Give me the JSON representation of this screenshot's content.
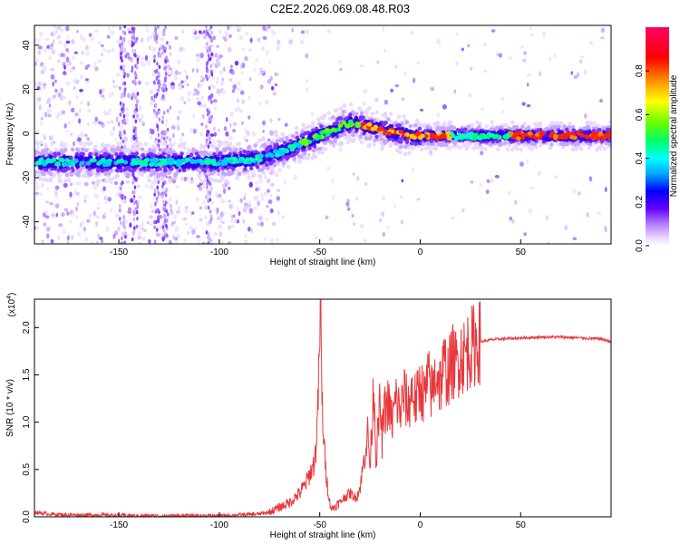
{
  "title": "C2E2.2026.069.08.48.R03",
  "chart_data": [
    {
      "type": "heatmap",
      "title": "C2E2.2026.069.08.48.R03",
      "xlabel": "Height of straight line (km)",
      "ylabel": "Frequency (Hz)",
      "xlim": [
        -192,
        95
      ],
      "ylim": [
        -50,
        49
      ],
      "x_ticks": [
        -150,
        -100,
        -50,
        0,
        50
      ],
      "y_ticks": [
        -40,
        -20,
        0,
        20,
        40
      ],
      "colorbar": {
        "label": "Normalized spectral amplitude",
        "range": [
          0,
          1
        ],
        "ticks": [
          0.0,
          0.2,
          0.4,
          0.6,
          0.8
        ],
        "colors": [
          "#ffffff",
          "#e8d4ff",
          "#b07cff",
          "#6600ff",
          "#0000ff",
          "#00aaff",
          "#00ffff",
          "#00ff66",
          "#66ff00",
          "#ffff00",
          "#ff8800",
          "#ff0000",
          "#ff0066"
        ]
      },
      "ridge": {
        "x": [
          -192,
          -150,
          -130,
          -100,
          -85,
          -75,
          -65,
          -55,
          -45,
          -38,
          -33,
          -25,
          -15,
          -5,
          0,
          10,
          25,
          40,
          60,
          80,
          95
        ],
        "y": [
          -13,
          -13,
          -13,
          -13,
          -12,
          -10,
          -7,
          -3,
          1,
          4,
          5,
          3,
          1,
          -1,
          -1,
          -1,
          -1,
          -1,
          -1,
          -1,
          -1
        ]
      }
    },
    {
      "type": "line",
      "xlabel": "Height of straight line (km)",
      "ylabel": "SNR (10 * v/v)",
      "y_multiplier": "(x10",
      "y_multiplier_exp": "4",
      "y_multiplier_close": ")",
      "xlim": [
        -192,
        95
      ],
      "ylim": [
        0,
        2.3
      ],
      "x_ticks": [
        -150,
        -100,
        -50,
        0,
        50
      ],
      "y_ticks": [
        0.0,
        0.5,
        1.0,
        1.5,
        2.0
      ],
      "y_tick_labels": [
        "0.0",
        "0.5",
        "1.0",
        "1.5",
        "2.0"
      ],
      "color": "#e8383c",
      "series": [
        {
          "x": [
            -192,
            -185,
            -175,
            -160,
            -140,
            -120,
            -100,
            -90,
            -80,
            -75,
            -70,
            -65,
            -60,
            -57,
            -55,
            -53,
            -52,
            -51,
            -50,
            -49.5,
            -49,
            -48,
            -47,
            -46,
            -45,
            -44,
            -42,
            -40,
            -38,
            -35,
            -32,
            -30,
            -28,
            -26,
            -25,
            -24,
            -23,
            -22,
            -21,
            -20,
            -19,
            -18,
            -16,
            -14,
            -12,
            -10,
            -8,
            -6,
            -4,
            -2,
            0,
            2,
            4,
            6,
            8,
            10,
            12,
            14,
            16,
            18,
            20,
            22,
            24,
            26,
            28,
            30,
            35,
            40,
            50,
            60,
            70,
            80,
            90,
            95
          ],
          "y": [
            0.05,
            0.03,
            0.02,
            0.02,
            0.01,
            0.01,
            0.01,
            0.02,
            0.03,
            0.05,
            0.1,
            0.15,
            0.25,
            0.35,
            0.45,
            0.55,
            0.7,
            1.1,
            1.9,
            2.3,
            1.3,
            0.8,
            0.5,
            0.3,
            0.15,
            0.08,
            0.12,
            0.15,
            0.2,
            0.25,
            0.2,
            0.3,
            0.6,
            0.9,
            0.5,
            1.0,
            1.45,
            0.6,
            0.9,
            1.2,
            0.8,
            1.1,
            1.2,
            1.0,
            1.25,
            1.1,
            1.3,
            1.15,
            1.35,
            1.2,
            1.4,
            1.25,
            1.45,
            1.3,
            1.55,
            1.4,
            1.6,
            1.5,
            1.65,
            1.6,
            1.72,
            1.7,
            1.78,
            1.8,
            1.84,
            1.85,
            1.87,
            1.88,
            1.89,
            1.9,
            1.9,
            1.89,
            1.88,
            1.85
          ]
        }
      ]
    }
  ]
}
